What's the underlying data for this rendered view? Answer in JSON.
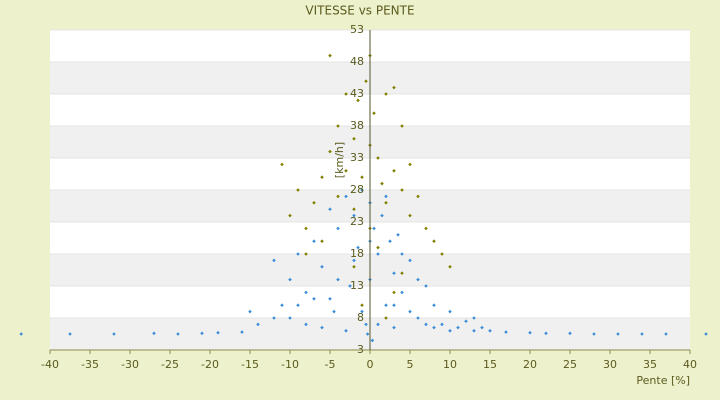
{
  "chart_data": {
    "type": "scatter",
    "title": "VITESSE vs PENTE",
    "x_label": "Pente [%]",
    "y_label": "[km/h]",
    "xlim": [
      -40,
      40
    ],
    "xticks": [
      -40,
      -35,
      -30,
      -25,
      -20,
      -15,
      -10,
      -5,
      0,
      5,
      10,
      15,
      20,
      25,
      30,
      35,
      40
    ],
    "ylim": [
      3,
      53
    ],
    "yticks": [
      3,
      8,
      13,
      18,
      23,
      28,
      33,
      38,
      43,
      48,
      53
    ],
    "grid": "bands",
    "series": [
      {
        "color": "#3a8fd8",
        "x": [
          -43.6,
          -37.5,
          -32,
          -27,
          -24,
          -21,
          -19,
          -16,
          -14,
          -12,
          -11,
          -10,
          -9,
          -8,
          -7,
          -6,
          -5,
          -4.5,
          -4,
          -3,
          -2.5,
          -2,
          -1.5,
          -1,
          -0.5,
          0,
          0.5,
          1,
          1.5,
          2,
          2.5,
          3,
          3.5,
          4,
          5,
          6,
          7,
          8,
          9,
          10,
          11,
          12,
          13,
          14,
          15,
          17,
          20,
          22,
          25,
          28,
          31,
          34,
          37,
          42,
          -10,
          -8,
          -6,
          -5,
          -3,
          -2,
          -1,
          0,
          1,
          2,
          3,
          4,
          6,
          8,
          10,
          -12,
          -9,
          -4,
          0,
          3,
          7,
          -15,
          13,
          0.3,
          -0.3,
          5,
          -7
        ],
        "values": [
          5.5,
          5.5,
          5.5,
          5.6,
          5.5,
          5.6,
          5.7,
          5.8,
          7,
          8,
          10,
          14,
          18,
          12,
          20,
          16,
          25,
          9,
          22,
          27,
          13,
          24,
          19,
          28,
          7,
          26,
          22,
          18,
          24,
          10,
          20,
          15,
          21,
          12,
          17,
          8,
          13,
          10,
          7,
          9,
          6.5,
          7.5,
          6,
          6.5,
          6,
          5.8,
          5.7,
          5.6,
          5.6,
          5.5,
          5.5,
          5.5,
          5.5,
          5.5,
          8,
          7,
          6.5,
          11,
          6,
          17,
          9,
          14,
          7,
          27,
          6.5,
          18,
          14,
          6.5,
          6,
          17,
          10,
          14,
          20,
          10,
          7,
          9,
          8,
          4.5,
          5.5,
          9,
          11
        ]
      },
      {
        "color": "#7f8000",
        "x": [
          -11,
          -10,
          -9,
          -8,
          -7,
          -6,
          -5,
          -5,
          -4,
          -4,
          -3,
          -3,
          -2,
          -2,
          -1.5,
          -1,
          -0.5,
          0,
          0,
          0,
          0.5,
          1,
          1.5,
          2,
          2,
          3,
          3,
          4,
          4,
          5,
          5,
          6,
          7,
          8,
          9,
          10,
          -6,
          -2,
          1,
          3,
          -1,
          2,
          4,
          -8
        ],
        "values": [
          32,
          24,
          28,
          22,
          26,
          30,
          49,
          34,
          38,
          27,
          43,
          31,
          36,
          25,
          42,
          30,
          45,
          49,
          35,
          22,
          40,
          33,
          29,
          43,
          26,
          31,
          44,
          28,
          38,
          24,
          32,
          27,
          22,
          20,
          18,
          16,
          20,
          16,
          19,
          12,
          10,
          8,
          15,
          18
        ]
      }
    ]
  }
}
